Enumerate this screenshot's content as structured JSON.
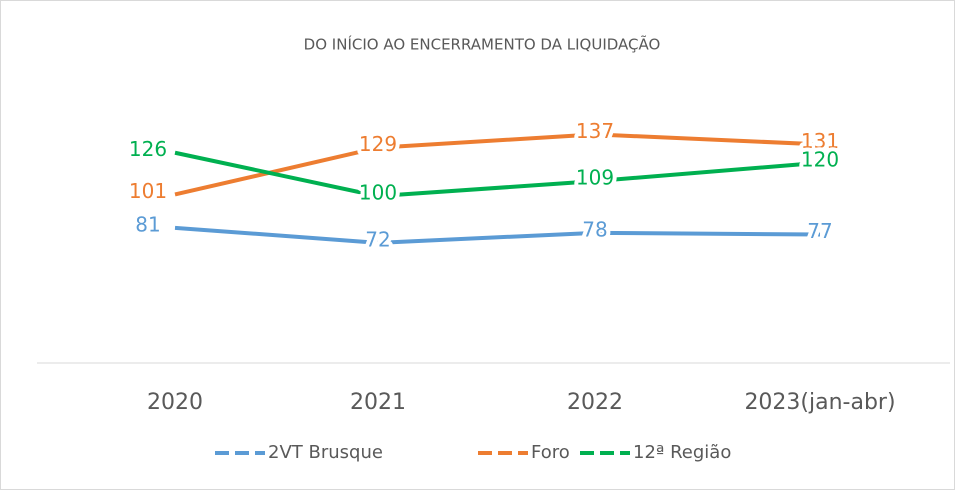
{
  "chart_data": {
    "type": "line",
    "title": "DO INÍCIO AO ENCERRAMENTO DA LIQUIDAÇÃO",
    "categories": [
      "2020",
      "2021",
      "2022",
      "2023(jan-abr)"
    ],
    "series": [
      {
        "name": "2VT Brusque",
        "color": "#5b9bd5",
        "values": [
          81,
          72,
          78,
          77
        ]
      },
      {
        "name": "Foro",
        "color": "#ed7d31",
        "values": [
          101,
          129,
          137,
          131
        ]
      },
      {
        "name": "12ª Região",
        "color": "#00b050",
        "values": [
          126,
          100,
          109,
          120
        ]
      }
    ],
    "ylim": [
      0,
      160
    ],
    "legend": "bottom"
  }
}
